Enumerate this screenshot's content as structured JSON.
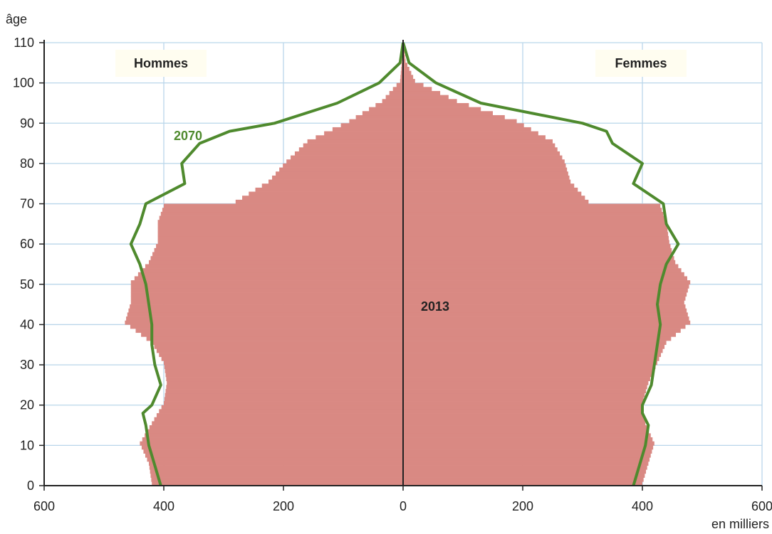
{
  "chart_data": {
    "type": "bar",
    "subtype": "population-pyramid",
    "title": "",
    "ylabel": "âge",
    "xlabel": "en milliers",
    "xlim": [
      -600,
      600
    ],
    "ylim": [
      0,
      110
    ],
    "x_ticks": [
      {
        "value": -600,
        "label": "600"
      },
      {
        "value": -400,
        "label": "400"
      },
      {
        "value": -200,
        "label": "200"
      },
      {
        "value": 0,
        "label": "0"
      },
      {
        "value": 200,
        "label": "200"
      },
      {
        "value": 400,
        "label": "400"
      },
      {
        "value": 600,
        "label": "600"
      }
    ],
    "y_ticks": [
      0,
      10,
      20,
      30,
      40,
      50,
      60,
      70,
      80,
      90,
      100,
      110
    ],
    "grid": true,
    "side_labels": {
      "left": "Hommes",
      "right": "Femmes"
    },
    "colors": {
      "bars": "#d98983",
      "line": "#4f8a2e",
      "grid": "#b9d6ea",
      "axis": "#222222",
      "label_box": "#fffdf0"
    },
    "series": [
      {
        "name": "2013",
        "kind": "bars",
        "hommes": [
          {
            "age": 0,
            "value": 420
          },
          {
            "age": 5,
            "value": 425
          },
          {
            "age": 10,
            "value": 440
          },
          {
            "age": 15,
            "value": 420
          },
          {
            "age": 20,
            "value": 400
          },
          {
            "age": 25,
            "value": 395
          },
          {
            "age": 30,
            "value": 400
          },
          {
            "age": 35,
            "value": 420
          },
          {
            "age": 40,
            "value": 465
          },
          {
            "age": 45,
            "value": 455
          },
          {
            "age": 50,
            "value": 455
          },
          {
            "age": 55,
            "value": 425
          },
          {
            "age": 60,
            "value": 410
          },
          {
            "age": 65,
            "value": 410
          },
          {
            "age": 69,
            "value": 400
          },
          {
            "age": 70,
            "value": 280
          },
          {
            "age": 75,
            "value": 225
          },
          {
            "age": 80,
            "value": 195
          },
          {
            "age": 85,
            "value": 160
          },
          {
            "age": 90,
            "value": 90
          },
          {
            "age": 95,
            "value": 35
          },
          {
            "age": 100,
            "value": 5
          },
          {
            "age": 105,
            "value": 2
          },
          {
            "age": 110,
            "value": 0
          }
        ],
        "femmes": [
          {
            "age": 0,
            "value": 400
          },
          {
            "age": 5,
            "value": 410
          },
          {
            "age": 10,
            "value": 420
          },
          {
            "age": 15,
            "value": 405
          },
          {
            "age": 20,
            "value": 400
          },
          {
            "age": 25,
            "value": 410
          },
          {
            "age": 30,
            "value": 425
          },
          {
            "age": 35,
            "value": 440
          },
          {
            "age": 40,
            "value": 480
          },
          {
            "age": 45,
            "value": 470
          },
          {
            "age": 50,
            "value": 480
          },
          {
            "age": 55,
            "value": 455
          },
          {
            "age": 60,
            "value": 445
          },
          {
            "age": 65,
            "value": 440
          },
          {
            "age": 69,
            "value": 430
          },
          {
            "age": 70,
            "value": 310
          },
          {
            "age": 75,
            "value": 280
          },
          {
            "age": 80,
            "value": 270
          },
          {
            "age": 85,
            "value": 250
          },
          {
            "age": 90,
            "value": 190
          },
          {
            "age": 95,
            "value": 90
          },
          {
            "age": 100,
            "value": 20
          },
          {
            "age": 105,
            "value": 4
          },
          {
            "age": 110,
            "value": 0
          }
        ]
      },
      {
        "name": "2070",
        "kind": "line",
        "hommes": [
          {
            "age": 0,
            "value": 405
          },
          {
            "age": 5,
            "value": 415
          },
          {
            "age": 10,
            "value": 425
          },
          {
            "age": 15,
            "value": 430
          },
          {
            "age": 18,
            "value": 435
          },
          {
            "age": 20,
            "value": 420
          },
          {
            "age": 25,
            "value": 405
          },
          {
            "age": 30,
            "value": 415
          },
          {
            "age": 35,
            "value": 420
          },
          {
            "age": 40,
            "value": 420
          },
          {
            "age": 45,
            "value": 425
          },
          {
            "age": 50,
            "value": 430
          },
          {
            "age": 55,
            "value": 440
          },
          {
            "age": 60,
            "value": 455
          },
          {
            "age": 65,
            "value": 440
          },
          {
            "age": 70,
            "value": 430
          },
          {
            "age": 75,
            "value": 365
          },
          {
            "age": 80,
            "value": 370
          },
          {
            "age": 85,
            "value": 340
          },
          {
            "age": 88,
            "value": 290
          },
          {
            "age": 90,
            "value": 215
          },
          {
            "age": 95,
            "value": 110
          },
          {
            "age": 100,
            "value": 40
          },
          {
            "age": 105,
            "value": 5
          },
          {
            "age": 110,
            "value": 0
          }
        ],
        "femmes": [
          {
            "age": 0,
            "value": 385
          },
          {
            "age": 5,
            "value": 395
          },
          {
            "age": 10,
            "value": 405
          },
          {
            "age": 15,
            "value": 410
          },
          {
            "age": 18,
            "value": 400
          },
          {
            "age": 20,
            "value": 400
          },
          {
            "age": 25,
            "value": 415
          },
          {
            "age": 30,
            "value": 420
          },
          {
            "age": 35,
            "value": 425
          },
          {
            "age": 40,
            "value": 430
          },
          {
            "age": 45,
            "value": 425
          },
          {
            "age": 50,
            "value": 430
          },
          {
            "age": 55,
            "value": 440
          },
          {
            "age": 60,
            "value": 460
          },
          {
            "age": 65,
            "value": 440
          },
          {
            "age": 70,
            "value": 435
          },
          {
            "age": 75,
            "value": 385
          },
          {
            "age": 80,
            "value": 400
          },
          {
            "age": 85,
            "value": 350
          },
          {
            "age": 88,
            "value": 340
          },
          {
            "age": 90,
            "value": 300
          },
          {
            "age": 95,
            "value": 130
          },
          {
            "age": 100,
            "value": 55
          },
          {
            "age": 105,
            "value": 10
          },
          {
            "age": 110,
            "value": 0
          }
        ]
      }
    ]
  }
}
